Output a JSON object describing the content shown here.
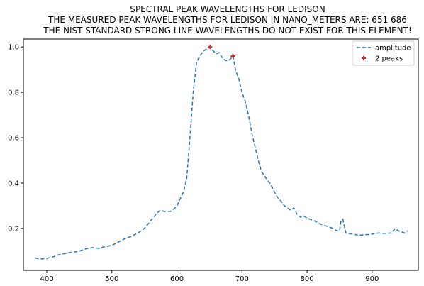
{
  "chart_data": {
    "type": "line",
    "title_lines": [
      "SPECTRAL PEAK WAVELENGTHS FOR LEDISON",
      "THE MEASURED PEAK WAVELENGTHS FOR LEDISON IN NANO_METERS ARE: 651 686",
      "THE NIST STANDARD STRONG LINE WAVELENGTHS DO NOT EXIST FOR THIS ELEMENT!"
    ],
    "xlabel": "",
    "ylabel": "",
    "xlim": [
      364,
      971
    ],
    "ylim": [
      0.015,
      1.035
    ],
    "xticks": [
      400,
      500,
      600,
      700,
      800,
      900
    ],
    "yticks": [
      0.2,
      0.4,
      0.6,
      0.8,
      1.0
    ],
    "xtick_labels": [
      "400",
      "500",
      "600",
      "700",
      "800",
      "900"
    ],
    "ytick_labels": [
      "0.2",
      "0.4",
      "0.6",
      "0.8",
      "1.0"
    ],
    "grid": false,
    "legend_position": "top-right",
    "series": [
      {
        "name": "amplitude",
        "style": "dashed",
        "color": "#1f77b4",
        "x": [
          382,
          390,
          400,
          410,
          420,
          430,
          440,
          450,
          460,
          470,
          480,
          490,
          500,
          510,
          520,
          530,
          540,
          550,
          560,
          570,
          575,
          580,
          590,
          595,
          600,
          605,
          610,
          615,
          620,
          625,
          630,
          635,
          640,
          645,
          651,
          655,
          660,
          665,
          670,
          675,
          680,
          686,
          690,
          695,
          700,
          705,
          710,
          715,
          720,
          725,
          730,
          735,
          740,
          745,
          750,
          755,
          760,
          765,
          770,
          775,
          780,
          785,
          790,
          795,
          800,
          805,
          810,
          820,
          830,
          840,
          845,
          850,
          852,
          855,
          858,
          860,
          870,
          880,
          890,
          900,
          910,
          920,
          930,
          935,
          940,
          950,
          955
        ],
        "y": [
          0.07,
          0.065,
          0.068,
          0.075,
          0.085,
          0.09,
          0.095,
          0.1,
          0.11,
          0.115,
          0.112,
          0.12,
          0.125,
          0.14,
          0.155,
          0.165,
          0.18,
          0.2,
          0.235,
          0.27,
          0.28,
          0.275,
          0.275,
          0.285,
          0.3,
          0.33,
          0.36,
          0.42,
          0.6,
          0.8,
          0.93,
          0.96,
          0.98,
          0.99,
          1.0,
          0.985,
          0.97,
          0.975,
          0.95,
          0.94,
          0.94,
          0.96,
          0.9,
          0.86,
          0.8,
          0.76,
          0.7,
          0.62,
          0.56,
          0.5,
          0.45,
          0.43,
          0.41,
          0.39,
          0.36,
          0.335,
          0.32,
          0.3,
          0.29,
          0.28,
          0.29,
          0.26,
          0.25,
          0.255,
          0.245,
          0.24,
          0.235,
          0.22,
          0.21,
          0.2,
          0.19,
          0.19,
          0.23,
          0.24,
          0.2,
          0.18,
          0.175,
          0.17,
          0.172,
          0.175,
          0.18,
          0.178,
          0.18,
          0.2,
          0.19,
          0.18,
          0.19
        ]
      }
    ],
    "peaks": {
      "name": "2 peaks",
      "marker": "plus",
      "color": "#d62728",
      "x": [
        651,
        686
      ],
      "y": [
        1.0,
        0.96
      ]
    }
  }
}
